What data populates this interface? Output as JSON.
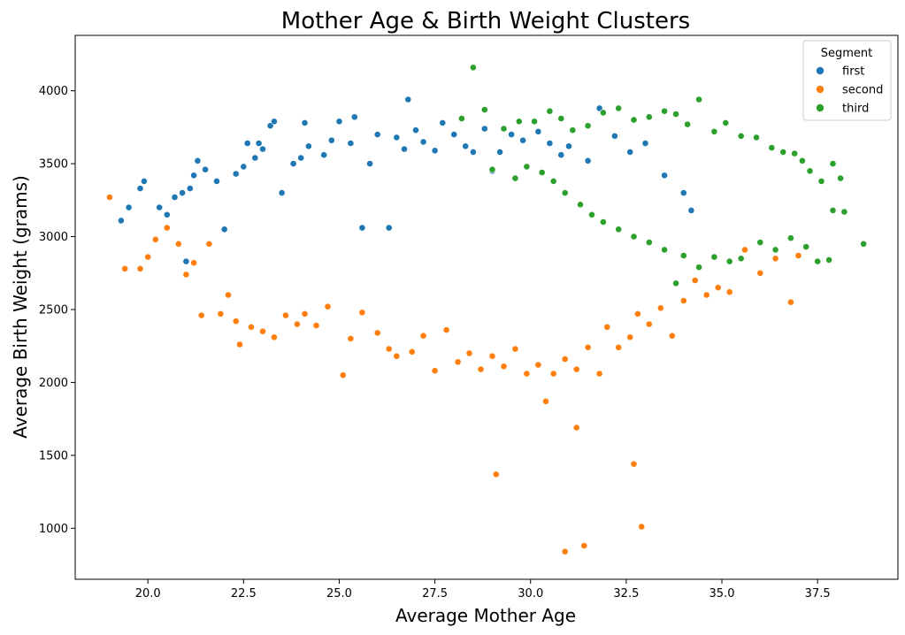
{
  "chart_data": {
    "type": "scatter",
    "title": "Mother Age & Birth Weight Clusters",
    "xlabel": "Average Mother Age",
    "ylabel": "Average Birth Weight (grams)",
    "xlim": [
      18.1,
      39.6
    ],
    "ylim": [
      650,
      4380
    ],
    "xticks": [
      20.0,
      22.5,
      25.0,
      27.5,
      30.0,
      32.5,
      35.0,
      37.5
    ],
    "xtick_labels": [
      "20.0",
      "22.5",
      "25.0",
      "27.5",
      "30.0",
      "32.5",
      "35.0",
      "37.5"
    ],
    "yticks": [
      1000,
      1500,
      2000,
      2500,
      3000,
      3500,
      4000
    ],
    "ytick_labels": [
      "1000",
      "1500",
      "2000",
      "2500",
      "3000",
      "3500",
      "4000"
    ],
    "grid": false,
    "legend": {
      "title": "Segment",
      "placement": "top-right"
    },
    "series": [
      {
        "name": "first",
        "color": "#1f77b4",
        "points": [
          [
            19.3,
            3110
          ],
          [
            19.5,
            3200
          ],
          [
            19.8,
            3330
          ],
          [
            19.9,
            3380
          ],
          [
            20.3,
            3200
          ],
          [
            20.5,
            3150
          ],
          [
            20.7,
            3270
          ],
          [
            20.9,
            3300
          ],
          [
            21.0,
            2830
          ],
          [
            21.1,
            3330
          ],
          [
            21.2,
            3420
          ],
          [
            21.3,
            3520
          ],
          [
            21.5,
            3460
          ],
          [
            21.8,
            3380
          ],
          [
            22.0,
            3050
          ],
          [
            22.3,
            3430
          ],
          [
            22.5,
            3480
          ],
          [
            22.6,
            3640
          ],
          [
            22.8,
            3540
          ],
          [
            22.9,
            3640
          ],
          [
            23.0,
            3600
          ],
          [
            23.2,
            3760
          ],
          [
            23.3,
            3790
          ],
          [
            23.5,
            3300
          ],
          [
            23.8,
            3500
          ],
          [
            24.0,
            3540
          ],
          [
            24.1,
            3780
          ],
          [
            24.2,
            3620
          ],
          [
            24.6,
            3560
          ],
          [
            24.8,
            3660
          ],
          [
            25.0,
            3790
          ],
          [
            25.3,
            3640
          ],
          [
            25.4,
            3820
          ],
          [
            25.6,
            3060
          ],
          [
            25.8,
            3500
          ],
          [
            26.0,
            3700
          ],
          [
            26.3,
            3060
          ],
          [
            26.5,
            3680
          ],
          [
            26.7,
            3600
          ],
          [
            26.8,
            3940
          ],
          [
            27.0,
            3730
          ],
          [
            27.2,
            3650
          ],
          [
            27.5,
            3590
          ],
          [
            27.7,
            3780
          ],
          [
            28.0,
            3700
          ],
          [
            28.3,
            3620
          ],
          [
            28.5,
            3580
          ],
          [
            28.8,
            3740
          ],
          [
            29.0,
            3450
          ],
          [
            29.2,
            3580
          ],
          [
            29.5,
            3700
          ],
          [
            29.8,
            3660
          ],
          [
            30.2,
            3720
          ],
          [
            30.5,
            3640
          ],
          [
            30.8,
            3560
          ],
          [
            31.0,
            3620
          ],
          [
            31.5,
            3520
          ],
          [
            31.8,
            3880
          ],
          [
            32.2,
            3690
          ],
          [
            32.6,
            3580
          ],
          [
            33.0,
            3640
          ],
          [
            33.5,
            3420
          ],
          [
            34.0,
            3300
          ],
          [
            34.2,
            3180
          ]
        ]
      },
      {
        "name": "second",
        "color": "#ff7f0e",
        "points": [
          [
            19.0,
            3270
          ],
          [
            19.4,
            2780
          ],
          [
            19.8,
            2780
          ],
          [
            20.0,
            2860
          ],
          [
            20.2,
            2980
          ],
          [
            20.5,
            3060
          ],
          [
            20.8,
            2950
          ],
          [
            21.0,
            2740
          ],
          [
            21.2,
            2820
          ],
          [
            21.4,
            2460
          ],
          [
            21.6,
            2950
          ],
          [
            21.9,
            2470
          ],
          [
            22.1,
            2600
          ],
          [
            22.3,
            2420
          ],
          [
            22.4,
            2260
          ],
          [
            22.7,
            2380
          ],
          [
            23.0,
            2350
          ],
          [
            23.3,
            2310
          ],
          [
            23.6,
            2460
          ],
          [
            23.9,
            2400
          ],
          [
            24.1,
            2470
          ],
          [
            24.4,
            2390
          ],
          [
            24.7,
            2520
          ],
          [
            25.1,
            2050
          ],
          [
            25.3,
            2300
          ],
          [
            25.6,
            2480
          ],
          [
            26.0,
            2340
          ],
          [
            26.3,
            2230
          ],
          [
            26.5,
            2180
          ],
          [
            26.9,
            2210
          ],
          [
            27.2,
            2320
          ],
          [
            27.5,
            2080
          ],
          [
            27.8,
            2360
          ],
          [
            28.1,
            2140
          ],
          [
            28.4,
            2200
          ],
          [
            28.7,
            2090
          ],
          [
            29.0,
            2180
          ],
          [
            29.3,
            2110
          ],
          [
            29.6,
            2230
          ],
          [
            29.9,
            2060
          ],
          [
            30.2,
            2120
          ],
          [
            30.4,
            1870
          ],
          [
            30.6,
            2060
          ],
          [
            30.9,
            2160
          ],
          [
            31.2,
            2090
          ],
          [
            31.5,
            2240
          ],
          [
            31.8,
            2060
          ],
          [
            32.0,
            2380
          ],
          [
            32.3,
            2240
          ],
          [
            32.6,
            2310
          ],
          [
            32.8,
            2470
          ],
          [
            33.1,
            2400
          ],
          [
            33.4,
            2510
          ],
          [
            33.7,
            2320
          ],
          [
            34.0,
            2560
          ],
          [
            34.3,
            2700
          ],
          [
            34.6,
            2600
          ],
          [
            34.9,
            2650
          ],
          [
            35.2,
            2620
          ],
          [
            35.6,
            2910
          ],
          [
            36.0,
            2750
          ],
          [
            36.4,
            2850
          ],
          [
            36.8,
            2550
          ],
          [
            37.0,
            2870
          ],
          [
            29.1,
            1370
          ],
          [
            30.9,
            840
          ],
          [
            31.2,
            1690
          ],
          [
            31.4,
            880
          ],
          [
            32.7,
            1440
          ],
          [
            32.9,
            1010
          ]
        ]
      },
      {
        "name": "third",
        "color": "#2ca02c",
        "points": [
          [
            28.2,
            3810
          ],
          [
            28.5,
            4160
          ],
          [
            28.8,
            3870
          ],
          [
            29.0,
            3460
          ],
          [
            29.3,
            3740
          ],
          [
            29.7,
            3790
          ],
          [
            30.1,
            3790
          ],
          [
            30.5,
            3860
          ],
          [
            30.8,
            3810
          ],
          [
            31.1,
            3730
          ],
          [
            31.5,
            3760
          ],
          [
            31.9,
            3850
          ],
          [
            32.3,
            3880
          ],
          [
            32.7,
            3800
          ],
          [
            33.1,
            3820
          ],
          [
            33.5,
            3860
          ],
          [
            33.8,
            3840
          ],
          [
            34.1,
            3770
          ],
          [
            34.4,
            3940
          ],
          [
            34.8,
            3720
          ],
          [
            35.1,
            3780
          ],
          [
            35.5,
            3690
          ],
          [
            35.9,
            3680
          ],
          [
            36.3,
            3610
          ],
          [
            36.6,
            3580
          ],
          [
            36.9,
            3570
          ],
          [
            37.1,
            3520
          ],
          [
            37.3,
            3450
          ],
          [
            37.6,
            3380
          ],
          [
            37.9,
            3500
          ],
          [
            38.1,
            3400
          ],
          [
            38.2,
            3170
          ],
          [
            38.7,
            2950
          ],
          [
            37.9,
            3180
          ],
          [
            37.8,
            2840
          ],
          [
            37.5,
            2830
          ],
          [
            37.2,
            2930
          ],
          [
            36.8,
            2990
          ],
          [
            36.4,
            2910
          ],
          [
            36.0,
            2960
          ],
          [
            35.5,
            2850
          ],
          [
            35.2,
            2830
          ],
          [
            34.8,
            2860
          ],
          [
            34.4,
            2790
          ],
          [
            34.0,
            2870
          ],
          [
            33.8,
            2680
          ],
          [
            33.5,
            2910
          ],
          [
            33.1,
            2960
          ],
          [
            32.7,
            3000
          ],
          [
            32.3,
            3050
          ],
          [
            31.9,
            3100
          ],
          [
            31.6,
            3150
          ],
          [
            31.3,
            3220
          ],
          [
            30.9,
            3300
          ],
          [
            30.6,
            3380
          ],
          [
            30.3,
            3440
          ],
          [
            29.9,
            3480
          ],
          [
            29.6,
            3400
          ]
        ]
      }
    ]
  }
}
